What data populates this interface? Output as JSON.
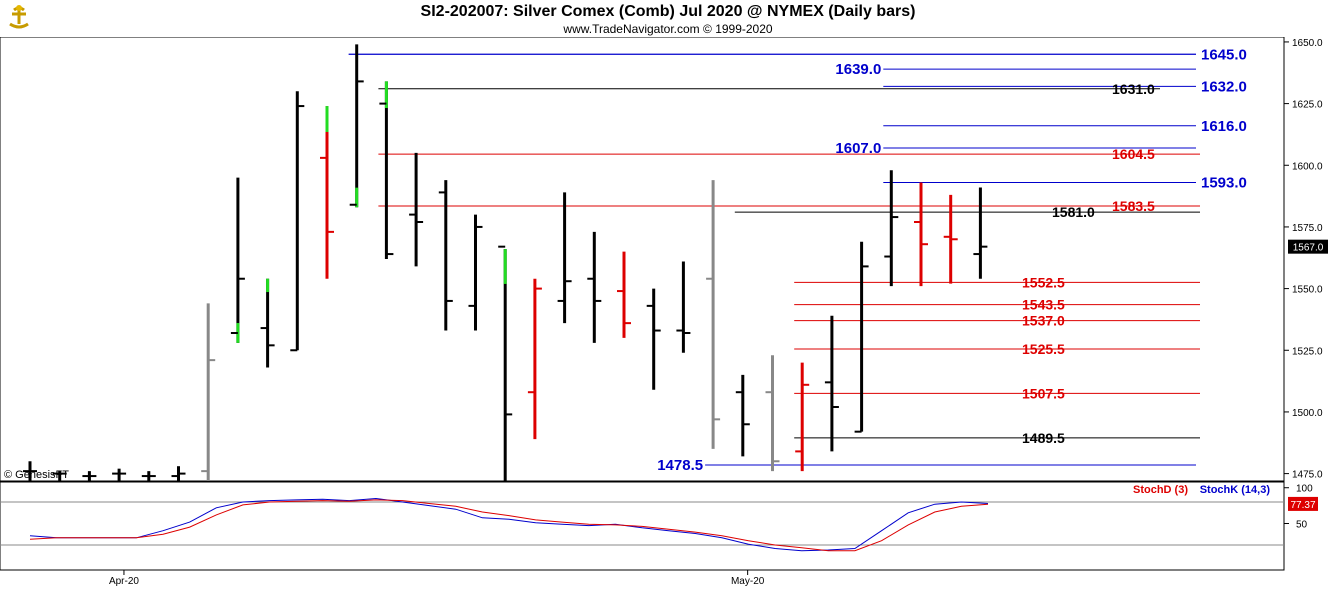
{
  "header": {
    "title": "SI2-202007:  Silver Comex (Comb) Jul 2020 @ NYMEX  (Daily bars)",
    "subtitle": "www.TradeNavigator.com © 1999-2020"
  },
  "watermark": "© GenesisFT",
  "colors": {
    "up_close_tick": "#22dd22",
    "down_bar": "#dd0000",
    "normal_bar": "#000000",
    "outside_bar": "#888888",
    "blue_level": "#0000cc",
    "red_level": "#dd0000",
    "black_level": "#000000",
    "stoch_d": "#dd0000",
    "stoch_k": "#0000cc"
  },
  "chart_data": [
    {
      "type": "ohlc",
      "title": "Silver Comex (Comb) Jul 2020 @ NYMEX (Daily bars)",
      "ylim": [
        1472,
        1652
      ],
      "y_ticks": [
        "1650.0",
        "1625.0",
        "1600.0",
        "1575.0",
        "1550.0",
        "1525.0",
        "1500.0",
        "1475.0"
      ],
      "x_labels": [
        {
          "label": "Apr-20",
          "bar_index": 3.5
        },
        {
          "label": "May-20",
          "bar_index": 24.5
        }
      ],
      "last_price_label": "1567.0",
      "last_price": 1567.0,
      "bars": [
        {
          "h": 1480,
          "l": 1472,
          "o": 1476,
          "c": 1476,
          "color": "black"
        },
        {
          "h": 1476,
          "l": 1472,
          "o": 1475,
          "c": 1475,
          "color": "black"
        },
        {
          "h": 1476,
          "l": 1472,
          "o": 1474,
          "c": 1474,
          "color": "black"
        },
        {
          "h": 1477,
          "l": 1472,
          "o": 1475,
          "c": 1475,
          "color": "black"
        },
        {
          "h": 1476,
          "l": 1472,
          "o": 1474,
          "c": 1474,
          "color": "black"
        },
        {
          "h": 1478,
          "l": 1472,
          "o": 1474,
          "c": 1475,
          "color": "black"
        },
        {
          "h": 1544,
          "l": 1472,
          "o": 1476,
          "c": 1521,
          "color": "gray"
        },
        {
          "h": 1595,
          "l": 1528,
          "o": 1532,
          "c": 1554,
          "color": "black",
          "low_green": true
        },
        {
          "h": 1554,
          "l": 1518,
          "o": 1534,
          "c": 1527,
          "color": "black",
          "high_green": true
        },
        {
          "h": 1630,
          "l": 1525,
          "o": 1525,
          "c": 1624,
          "color": "black"
        },
        {
          "h": 1624,
          "l": 1554,
          "o": 1603,
          "c": 1573,
          "color": "red",
          "high_green": true
        },
        {
          "h": 1649,
          "l": 1583,
          "o": 1584,
          "c": 1634,
          "color": "black",
          "low_green": true
        },
        {
          "h": 1634,
          "l": 1562,
          "o": 1625,
          "c": 1564,
          "color": "black",
          "high_green": true
        },
        {
          "h": 1605,
          "l": 1559,
          "o": 1580,
          "c": 1577,
          "color": "black"
        },
        {
          "h": 1594,
          "l": 1533,
          "o": 1589,
          "c": 1545,
          "color": "black"
        },
        {
          "h": 1580,
          "l": 1533,
          "o": 1543,
          "c": 1575,
          "color": "black"
        },
        {
          "h": 1566,
          "l": 1472,
          "o": 1567,
          "c": 1499,
          "color": "black",
          "high_green": true
        },
        {
          "h": 1554,
          "l": 1489,
          "o": 1508,
          "c": 1550,
          "color": "red"
        },
        {
          "h": 1589,
          "l": 1536,
          "o": 1545,
          "c": 1553,
          "color": "black"
        },
        {
          "h": 1573,
          "l": 1528,
          "o": 1554,
          "c": 1545,
          "color": "black"
        },
        {
          "h": 1565,
          "l": 1530,
          "o": 1549,
          "c": 1536,
          "color": "red"
        },
        {
          "h": 1550,
          "l": 1509,
          "o": 1543,
          "c": 1533,
          "color": "black"
        },
        {
          "h": 1561,
          "l": 1524,
          "o": 1533,
          "c": 1532,
          "color": "black"
        },
        {
          "h": 1594,
          "l": 1485,
          "o": 1554,
          "c": 1497,
          "color": "gray"
        },
        {
          "h": 1515,
          "l": 1482,
          "o": 1508,
          "c": 1495,
          "color": "black"
        },
        {
          "h": 1523,
          "l": 1476,
          "o": 1508,
          "c": 1480,
          "color": "gray"
        },
        {
          "h": 1520,
          "l": 1476,
          "o": 1484,
          "c": 1511,
          "color": "red"
        },
        {
          "h": 1539,
          "l": 1484,
          "o": 1512,
          "c": 1502,
          "color": "black"
        },
        {
          "h": 1569,
          "l": 1492,
          "o": 1492,
          "c": 1559,
          "color": "black"
        },
        {
          "h": 1598,
          "l": 1551,
          "o": 1563,
          "c": 1579,
          "color": "black"
        },
        {
          "h": 1593,
          "l": 1551,
          "o": 1577,
          "c": 1568,
          "color": "red"
        },
        {
          "h": 1588,
          "l": 1552,
          "o": 1571,
          "c": 1570,
          "color": "red"
        },
        {
          "h": 1591,
          "l": 1554,
          "o": 1564,
          "c": 1567,
          "color": "black"
        }
      ],
      "levels": [
        {
          "label": "1645.0",
          "value": 1645.0,
          "color": "blue",
          "start_bar": 11
        },
        {
          "label": "1639.0",
          "value": 1639.0,
          "color": "blue",
          "start_bar": 29
        },
        {
          "label": "1632.0",
          "value": 1632.0,
          "color": "blue",
          "start_bar": 29
        },
        {
          "label": "1631.0",
          "value": 1631.0,
          "color": "black",
          "start_bar": 12
        },
        {
          "label": "1616.0",
          "value": 1616.0,
          "color": "blue",
          "start_bar": 29
        },
        {
          "label": "1607.0",
          "value": 1607.0,
          "color": "blue",
          "start_bar": 29
        },
        {
          "label": "1604.5",
          "value": 1604.5,
          "color": "red",
          "start_bar": 12
        },
        {
          "label": "1593.0",
          "value": 1593.0,
          "color": "blue",
          "start_bar": 29
        },
        {
          "label": "1583.5",
          "value": 1583.5,
          "color": "red",
          "start_bar": 12
        },
        {
          "label": "1581.0",
          "value": 1581.0,
          "color": "black",
          "start_bar": 24
        },
        {
          "label": "1552.5",
          "value": 1552.5,
          "color": "red",
          "start_bar": 26
        },
        {
          "label": "1543.5",
          "value": 1543.5,
          "color": "red",
          "start_bar": 26
        },
        {
          "label": "1537.0",
          "value": 1537.0,
          "color": "red",
          "start_bar": 26
        },
        {
          "label": "1525.5",
          "value": 1525.5,
          "color": "red",
          "start_bar": 26
        },
        {
          "label": "1507.5",
          "value": 1507.5,
          "color": "red",
          "start_bar": 26
        },
        {
          "label": "1489.5",
          "value": 1489.5,
          "color": "black",
          "start_bar": 26
        },
        {
          "label": "1478.5",
          "value": 1478.5,
          "color": "blue",
          "start_bar": 23
        }
      ]
    },
    {
      "type": "line",
      "ylim": [
        -15,
        108
      ],
      "y_ticks": [
        "100",
        "50"
      ],
      "legend": [
        "StochD (3)",
        "StochK (14,3)"
      ],
      "last_value_label": "77.37",
      "series": [
        {
          "name": "StochK (14,3)",
          "values": [
            33,
            30,
            30,
            30,
            30,
            40,
            52,
            72,
            80,
            82,
            83,
            84,
            82,
            85,
            80,
            75,
            70,
            58,
            56,
            51,
            49,
            47,
            49,
            44,
            40,
            36,
            30,
            21,
            15,
            12,
            13,
            15,
            40,
            65,
            77,
            80,
            78
          ]
        },
        {
          "name": "StochD (3)",
          "values": [
            28,
            30,
            30,
            30,
            30,
            35,
            45,
            62,
            76,
            80,
            81,
            82,
            81,
            83,
            82,
            78,
            74,
            66,
            61,
            55,
            52,
            49,
            48,
            46,
            42,
            38,
            33,
            26,
            20,
            16,
            12,
            12,
            26,
            48,
            66,
            74,
            77
          ]
        }
      ]
    }
  ]
}
